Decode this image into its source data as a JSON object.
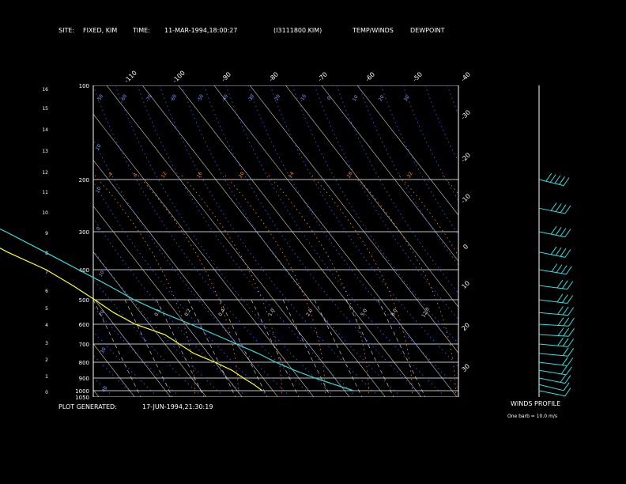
{
  "header": {
    "site_label": "SITE:",
    "site_value": "FIXED, KIM",
    "time_label": "TIME:",
    "time_value": "11-MAR-1994,18:00:27",
    "file_id": "(I3111800.KIM)",
    "legend_temp": "TEMP/WINDS",
    "legend_dew": "DEWPOINT"
  },
  "footer": {
    "generated_label": "PLOT GENERATED:",
    "generated_value": "17-JUN-1994,21:30:19",
    "winds_title": "WINDS PROFILE",
    "barb_note": "One barb = 10.0 m/s"
  },
  "colors": {
    "temp": "#33e0e0",
    "dew": "#ffff33",
    "grid": "#ffffff",
    "isotherm_label": "#7f9fff",
    "dry_adiabat": "#4466ff",
    "moist_adiabat": "#ff8833",
    "mixing_ratio": "#dddddd"
  },
  "chart_data": {
    "type": "line",
    "title": "",
    "pressure_labels": [
      "100",
      "200",
      "300",
      "400",
      "500",
      "600",
      "700",
      "800",
      "900",
      "1000",
      "1050"
    ],
    "height_km_labels": [
      "16",
      "15",
      "14",
      "13",
      "12",
      "11",
      "10",
      "9",
      "8",
      "7",
      "6",
      "5",
      "4",
      "3",
      "2",
      "1",
      "0"
    ],
    "isotherm_top_labels": [
      "-110",
      "-100",
      "-90",
      "-80",
      "-70",
      "-60",
      "-50",
      "-40"
    ],
    "isotherm_right_labels": [
      "-30",
      "-20",
      "-10",
      "0",
      "10",
      "20",
      "30"
    ],
    "theta_labels": [
      "-50",
      "-60",
      "-70",
      "-60",
      "-50",
      "-40",
      "-30",
      "-20",
      "-10",
      "0",
      "10",
      "20",
      "30"
    ],
    "left_isotherm_labels": [
      "10",
      "10",
      "0",
      "10",
      "20",
      "30",
      "40",
      "40",
      "50"
    ],
    "moist_labels": [
      "-4",
      "8",
      "12",
      "16",
      "20",
      "24",
      "28",
      "32"
    ],
    "mixing_labels": [
      "0.1",
      "0.2",
      "0.4",
      "1.0",
      "2.0",
      "5.0",
      "8.0",
      "12.0"
    ],
    "series": [
      {
        "name": "TEMP/WINDS",
        "points": [
          [
            1000,
            12.5
          ],
          [
            950,
            8.5
          ],
          [
            900,
            4.5
          ],
          [
            850,
            0.5
          ],
          [
            800,
            -3.0
          ],
          [
            750,
            -6.0
          ],
          [
            700,
            -10.0
          ],
          [
            650,
            -14.0
          ],
          [
            600,
            -18.5
          ],
          [
            550,
            -24.0
          ],
          [
            500,
            -29.0
          ],
          [
            450,
            -33.0
          ],
          [
            400,
            -38.0
          ],
          [
            350,
            -43.5
          ],
          [
            300,
            -50.0
          ],
          [
            275,
            -54.5
          ],
          [
            250,
            -57.5
          ],
          [
            225,
            -58.5
          ],
          [
            200,
            -55.0
          ]
        ]
      },
      {
        "name": "DEWPOINT",
        "points": [
          [
            1000,
            -13.0
          ],
          [
            950,
            -14.0
          ],
          [
            900,
            -15.5
          ],
          [
            850,
            -17.0
          ],
          [
            800,
            -20.0
          ],
          [
            750,
            -24.0
          ],
          [
            700,
            -26.0
          ],
          [
            650,
            -28.0
          ],
          [
            600,
            -34.0
          ],
          [
            550,
            -37.5
          ],
          [
            500,
            -40.0
          ],
          [
            450,
            -43.0
          ],
          [
            400,
            -47.0
          ],
          [
            350,
            -54.0
          ],
          [
            300,
            -60.0
          ],
          [
            275,
            -63.5
          ],
          [
            250,
            -66.0
          ],
          [
            225,
            -66.5
          ],
          [
            200,
            -63.0
          ]
        ]
      }
    ],
    "winds": [
      {
        "p": 1000,
        "dir": 240,
        "spd": 8
      },
      {
        "p": 950,
        "dir": 235,
        "spd": 12
      },
      {
        "p": 900,
        "dir": 240,
        "spd": 15
      },
      {
        "p": 850,
        "dir": 245,
        "spd": 17
      },
      {
        "p": 800,
        "dir": 250,
        "spd": 20
      },
      {
        "p": 750,
        "dir": 255,
        "spd": 22
      },
      {
        "p": 700,
        "dir": 255,
        "spd": 25
      },
      {
        "p": 650,
        "dir": 260,
        "spd": 26
      },
      {
        "p": 600,
        "dir": 260,
        "spd": 28
      },
      {
        "p": 550,
        "dir": 255,
        "spd": 30
      },
      {
        "p": 500,
        "dir": 250,
        "spd": 32
      },
      {
        "p": 450,
        "dir": 250,
        "spd": 34
      },
      {
        "p": 400,
        "dir": 245,
        "spd": 35
      },
      {
        "p": 350,
        "dir": 240,
        "spd": 38
      },
      {
        "p": 300,
        "dir": 240,
        "spd": 40
      },
      {
        "p": 250,
        "dir": 240,
        "spd": 42
      },
      {
        "p": 200,
        "dir": 235,
        "spd": 45
      }
    ]
  }
}
